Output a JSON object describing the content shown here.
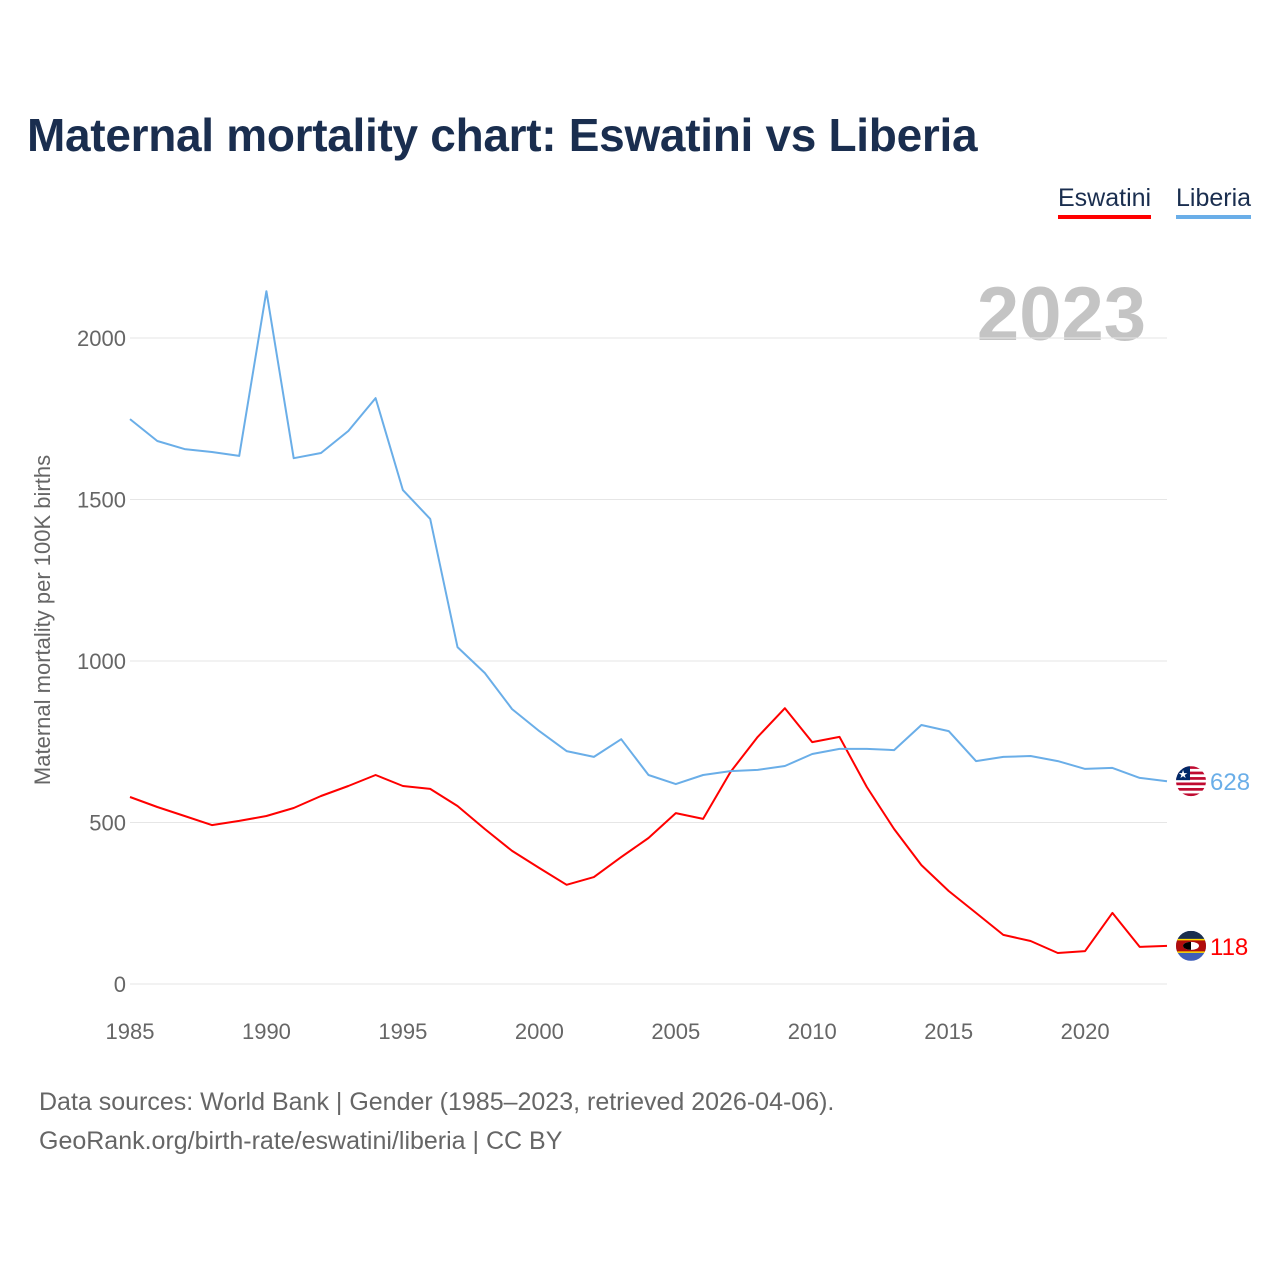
{
  "header": {
    "title": "Maternal mortality chart: Eswatini vs Liberia"
  },
  "footer": {
    "line1": "Data sources: World Bank | Gender (1985–2023, retrieved 2026-04-06).",
    "line2": "GeoRank.org/birth-rate/eswatini/liberia | CC BY"
  },
  "chart_data": {
    "type": "line",
    "title": "Maternal mortality chart: Eswatini vs Liberia",
    "xlabel": "",
    "ylabel": "Maternal mortality per 100K births",
    "year_label": "2023",
    "xlim": [
      1985,
      2023
    ],
    "ylim": [
      0,
      2200
    ],
    "x_ticks": [
      1985,
      1990,
      1995,
      2000,
      2005,
      2010,
      2015,
      2020
    ],
    "y_ticks": [
      0,
      500,
      1000,
      1500,
      2000
    ],
    "grid": true,
    "legend_position": "top-right",
    "x": [
      1985,
      1986,
      1987,
      1988,
      1989,
      1990,
      1991,
      1992,
      1993,
      1994,
      1995,
      1996,
      1997,
      1998,
      1999,
      2000,
      2001,
      2002,
      2003,
      2004,
      2005,
      2006,
      2007,
      2008,
      2009,
      2010,
      2011,
      2012,
      2013,
      2014,
      2015,
      2016,
      2017,
      2018,
      2019,
      2020,
      2021,
      2022,
      2023
    ],
    "series": [
      {
        "name": "Eswatini",
        "color": "#ff0000",
        "end_label": "118",
        "values": [
          579,
          548,
          520,
          492,
          505,
          520,
          545,
          582,
          613,
          647,
          613,
          604,
          551,
          480,
          412,
          359,
          307,
          331,
          393,
          452,
          529,
          511,
          656,
          765,
          854,
          749,
          765,
          610,
          480,
          368,
          288,
          220,
          152,
          133,
          96,
          102,
          220,
          115,
          118
        ]
      },
      {
        "name": "Liberia",
        "color": "#6aaee8",
        "end_label": "628",
        "values": [
          1749,
          1681,
          1656,
          1647,
          1635,
          2145,
          1628,
          1644,
          1712,
          1814,
          1529,
          1440,
          1043,
          963,
          851,
          783,
          721,
          703,
          758,
          647,
          619,
          647,
          659,
          663,
          675,
          712,
          728,
          728,
          724,
          802,
          783,
          690,
          703,
          706,
          690,
          666,
          669,
          638,
          628
        ]
      }
    ]
  }
}
